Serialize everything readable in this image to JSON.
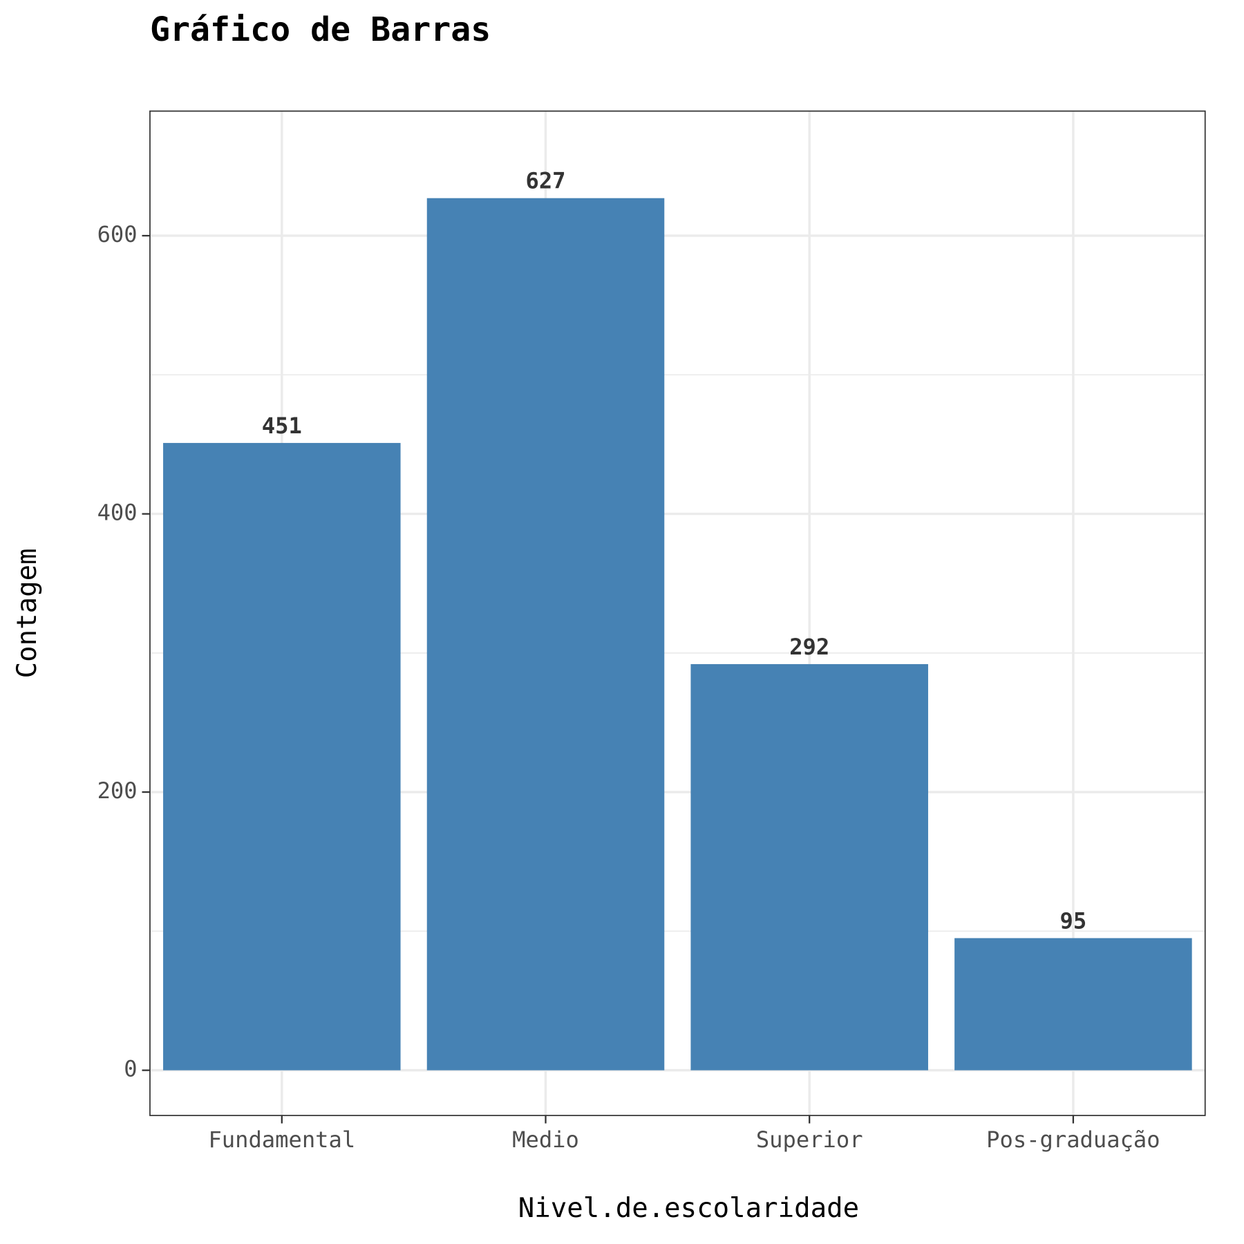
{
  "chart_data": {
    "type": "bar",
    "title": "Gráfico de Barras",
    "x_label": "Nivel.de.escolaridade",
    "y_label": "Contagem",
    "categories": [
      "Fundamental",
      "Medio",
      "Superior",
      "Pos-graduação"
    ],
    "values": [
      451,
      627,
      292,
      95
    ],
    "color": "#4682b4",
    "ylim": [
      -32.5,
      689.6
    ],
    "yticks": [
      0,
      200,
      400,
      600
    ],
    "minor_yticks": [
      100,
      300,
      500
    ],
    "grid": true
  }
}
